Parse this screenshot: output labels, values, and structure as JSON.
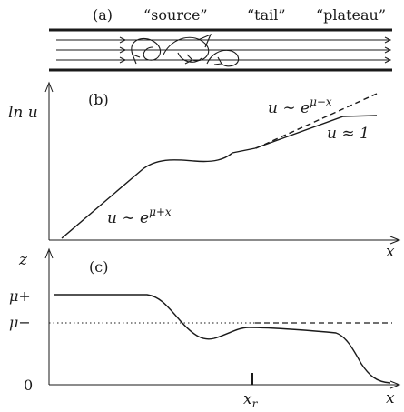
{
  "panel_a": {
    "label": "(a)",
    "regions": [
      "“source”",
      "“tail”",
      "“plateau”"
    ]
  },
  "panel_b": {
    "label": "(b)",
    "y_axis_label": "ln u",
    "x_axis_label": "x",
    "ann_left": {
      "base": "u ∼ e",
      "sup": "μ+x"
    },
    "ann_upper": {
      "base": "u ∼ e",
      "sup": "μ−x"
    },
    "ann_plateau": "u ≈ 1"
  },
  "panel_c": {
    "label": "(c)",
    "y_axis_label": "z",
    "x_axis_label": "x",
    "y_ticks": {
      "mu_plus": "μ+",
      "mu_minus": "μ−",
      "zero": "0"
    },
    "x_tick": "xr"
  },
  "colors": {
    "ink": "#1a1a1a"
  }
}
